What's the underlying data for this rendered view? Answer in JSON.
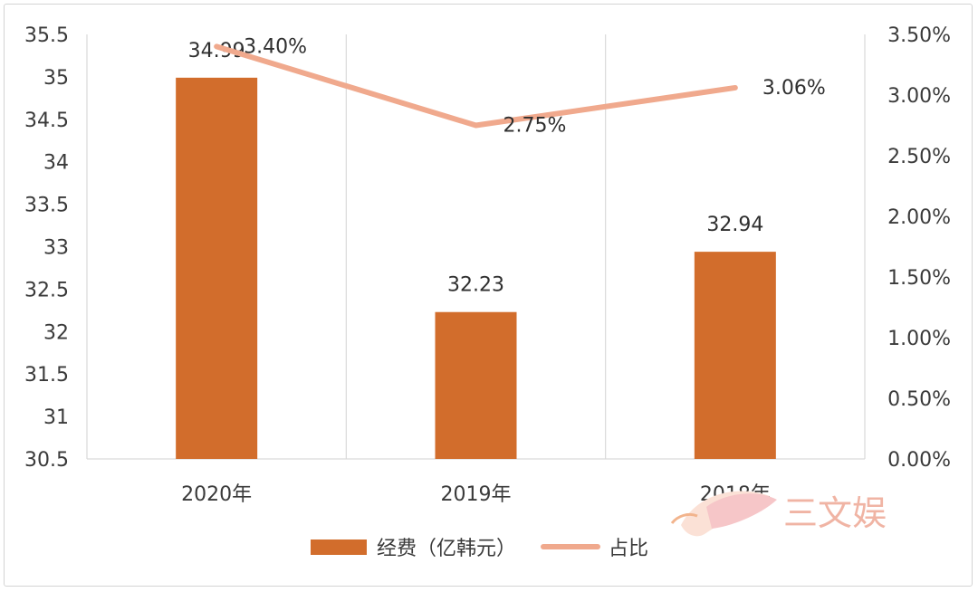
{
  "chart_data": {
    "type": "bar",
    "categories": [
      "2020年",
      "2019年",
      "2018年"
    ],
    "series": [
      {
        "name": "经费（亿韩元）",
        "type": "bar",
        "axis": "left",
        "color": "#d26d2c",
        "values": [
          34.99,
          32.23,
          32.94
        ],
        "labels": [
          "34.99",
          "32.23",
          "32.94"
        ]
      },
      {
        "name": "占比",
        "type": "line",
        "axis": "right",
        "color": "#f0a98d",
        "values": [
          3.4,
          2.75,
          3.06
        ],
        "labels": [
          "3.40%",
          "2.75%",
          "3.06%"
        ]
      }
    ],
    "y_left": {
      "min": 30.5,
      "max": 35.5,
      "ticks": [
        "30.5",
        "31",
        "31.5",
        "32",
        "32.5",
        "33",
        "33.5",
        "34",
        "34.5",
        "35",
        "35.5"
      ]
    },
    "y_right": {
      "min": 0,
      "max": 3.5,
      "ticks": [
        "0.00%",
        "0.50%",
        "1.00%",
        "1.50%",
        "2.00%",
        "2.50%",
        "3.00%",
        "3.50%"
      ]
    },
    "grid": "vertical",
    "legend_position": "bottom"
  },
  "watermark": {
    "text": "三文娱"
  }
}
